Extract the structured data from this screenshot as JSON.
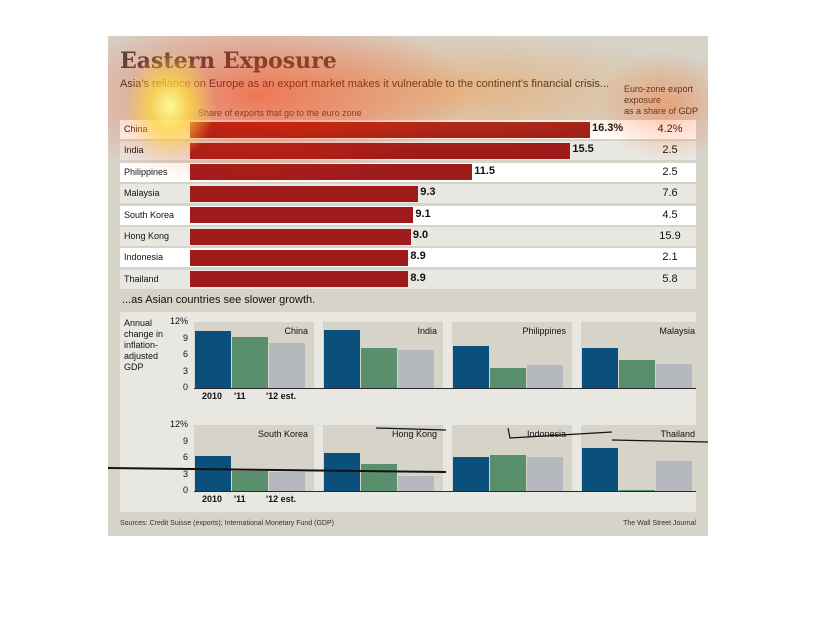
{
  "header": {
    "title": "Eastern Exposure",
    "subtitle": "Asia's reliance on Europe as an export market makes it vulnerable to the continent's financial crisis...",
    "right_column_label_1": "Euro-zone export",
    "right_column_label_2": "exposure",
    "right_column_label_3": "as a share of GDP",
    "bar_axis_label": "Share of exports that go to the euro zone"
  },
  "chart_data": [
    {
      "type": "bar",
      "orientation": "horizontal",
      "title": "Eastern Exposure",
      "subtitle": "Asia's reliance on Europe as an export market makes it vulnerable to the continent's financial crisis...",
      "xlabel": "Share of exports that go to the euro zone",
      "categories": [
        "China",
        "India",
        "Philippines",
        "Malaysia",
        "South Korea",
        "Hong Kong",
        "Indonesia",
        "Thailand"
      ],
      "values": [
        16.3,
        15.5,
        11.5,
        9.3,
        9.1,
        9.0,
        8.9,
        8.9
      ],
      "value_labels": [
        "16.3%",
        "15.5",
        "11.5",
        "9.3",
        "9.1",
        "9.0",
        "8.9",
        "8.9"
      ],
      "xlim": [
        0,
        16.3
      ],
      "secondary_column": {
        "label": "Euro-zone export exposure as a share of GDP",
        "values": [
          "4.2%",
          "2.5",
          "2.5",
          "7.6",
          "4.5",
          "15.9",
          "2.1",
          "5.8"
        ]
      },
      "bar_color": "#9e1b1b"
    },
    {
      "type": "bar",
      "title": "...as Asian countries see slower growth.",
      "ylabel": "Annual change in inflation-adjusted GDP",
      "ylim": [
        0,
        12
      ],
      "yticks": [
        "0",
        "3",
        "6",
        "9",
        "12%"
      ],
      "categories": [
        "2010",
        "'11",
        "'12 est."
      ],
      "colors": [
        "#0b4f7c",
        "#5a8f6e",
        "#b5b8bc"
      ],
      "facets": [
        {
          "name": "China",
          "values": [
            10.4,
            9.2,
            8.2
          ]
        },
        {
          "name": "India",
          "values": [
            10.6,
            7.2,
            7.0
          ]
        },
        {
          "name": "Philippines",
          "values": [
            7.6,
            3.7,
            4.2
          ]
        },
        {
          "name": "Malaysia",
          "values": [
            7.2,
            5.1,
            4.4
          ]
        },
        {
          "name": "South Korea",
          "values": [
            6.3,
            3.6,
            3.4
          ]
        },
        {
          "name": "Hong Kong",
          "values": [
            7.0,
            5.0,
            2.8
          ]
        },
        {
          "name": "Indonesia",
          "values": [
            6.1,
            6.5,
            6.1
          ]
        },
        {
          "name": "Thailand",
          "values": [
            7.8,
            0.1,
            5.5
          ]
        }
      ]
    }
  ],
  "lower": {
    "title": "...as Asian countries see slower growth.",
    "ylabel_1": "Annual",
    "ylabel_2": "change in",
    "ylabel_3": "inflation-",
    "ylabel_4": "adjusted",
    "ylabel_5": "GDP"
  },
  "footer": {
    "sources": "Sources: Credit Suisse (exports); International Monetary Fund (GDP)",
    "publisher": "The Wall Street Journal"
  }
}
